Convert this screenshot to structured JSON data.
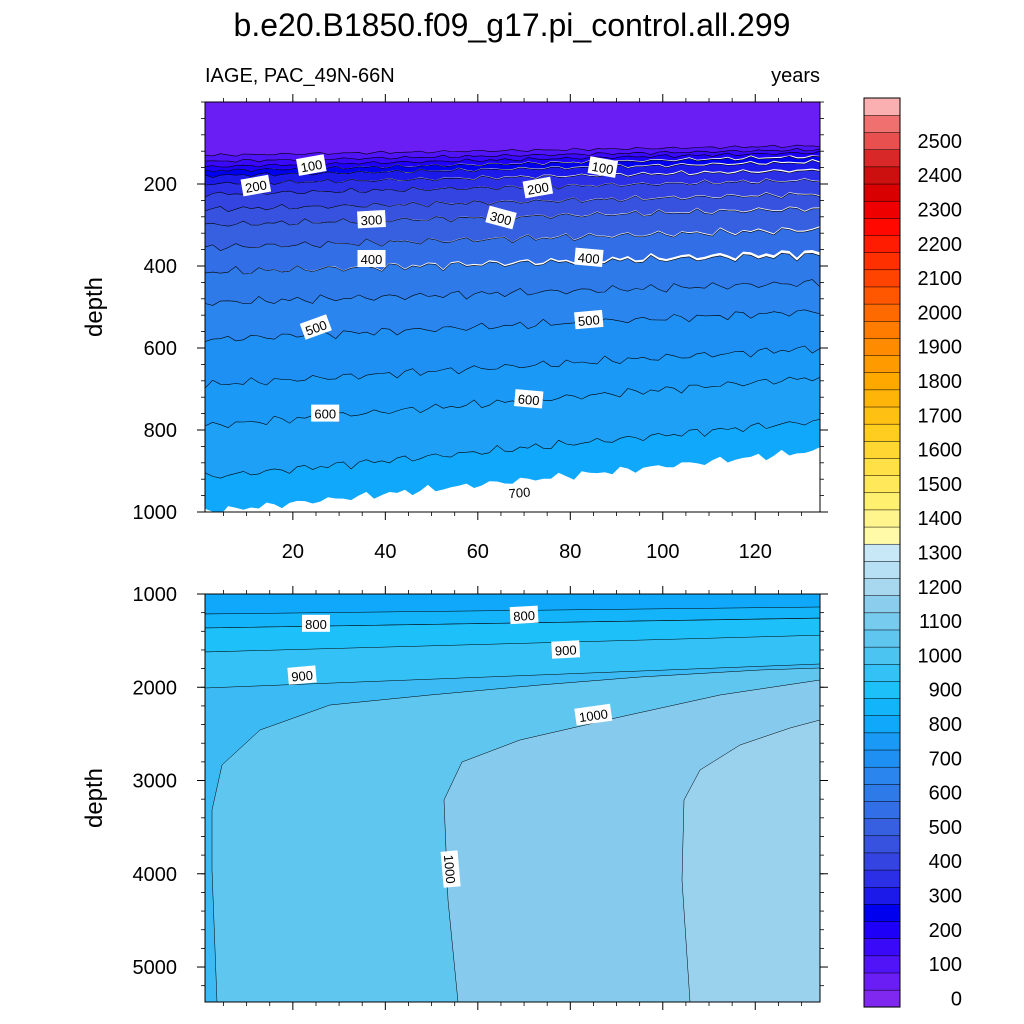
{
  "chart_data": {
    "type": "heatmap",
    "title": "b.e20.B1850.f09_g17.pi_control.all.299",
    "left_subtitle": "IAGE, PAC_49N-66N",
    "right_subtitle": "years",
    "x_ticks": [
      20,
      40,
      60,
      80,
      100,
      120
    ],
    "x_range": [
      1,
      134
    ],
    "colorbar": {
      "labels": [
        "0",
        "100",
        "200",
        "300",
        "400",
        "500",
        "600",
        "700",
        "800",
        "900",
        "1000",
        "1100",
        "1200",
        "1300",
        "1400",
        "1500",
        "1600",
        "1700",
        "1800",
        "1900",
        "2000",
        "2100",
        "2200",
        "2300",
        "2400",
        "2500"
      ],
      "levels_step": 50,
      "colors": [
        "#8028f0",
        "#6a1ef4",
        "#5014f6",
        "#3a0af8",
        "#1e00f8",
        "#0000ee",
        "#1b1ae8",
        "#2b30e6",
        "#3444e0",
        "#3652de",
        "#3660e0",
        "#326ee6",
        "#2e7ae8",
        "#2a86ee",
        "#1e90f4",
        "#1a9af6",
        "#10a8fa",
        "#14b4fa",
        "#1ec0fa",
        "#34c2f6",
        "#4cc4f2",
        "#5fc6f0",
        "#76cbee",
        "#8acdec",
        "#a8d8f0",
        "#b8e0f4",
        "#c8e8f8",
        "#fffaa8",
        "#fff58c",
        "#fff070",
        "#ffe85a",
        "#ffe046",
        "#ffd632",
        "#ffcc20",
        "#ffc014",
        "#ffb40a",
        "#ffa800",
        "#ff9a00",
        "#ff8c00",
        "#ff7c00",
        "#ff6a00",
        "#ff5600",
        "#ff4400",
        "#ff3000",
        "#ff1c00",
        "#ff0800",
        "#ee0000",
        "#d80000",
        "#cc1010",
        "#d82828",
        "#e85050",
        "#f07070",
        "#fab0b0"
      ]
    },
    "panels": [
      {
        "name": "upper",
        "ylabel": "depth",
        "y_range": [
          0,
          1000
        ],
        "y_ticks": [
          200,
          400,
          600,
          800,
          1000
        ],
        "layers": [
          {
            "d0": 0,
            "d1": 130,
            "s": 0,
            "color": "#6a1ef4"
          },
          {
            "d0": 130,
            "d1": 145,
            "s": 0.18,
            "color": "#5014f6"
          },
          {
            "d0": 145,
            "d1": 158,
            "s": 0.2,
            "color": "#3a0af8"
          },
          {
            "d0": 158,
            "d1": 168,
            "s": 0.22,
            "color": "#1e00f8"
          },
          {
            "d0": 168,
            "d1": 180,
            "s": 0.2,
            "color": "#0000ee"
          },
          {
            "d0": 180,
            "d1": 200,
            "s": 0.18,
            "color": "#1b1ae8"
          },
          {
            "d0": 200,
            "d1": 225,
            "s": 0.16,
            "color": "#2b30e6"
          },
          {
            "d0": 225,
            "d1": 262,
            "s": 0.15,
            "color": "#3444e0"
          },
          {
            "d0": 262,
            "d1": 300,
            "s": 0.14,
            "color": "#3652de"
          },
          {
            "d0": 300,
            "d1": 355,
            "s": 0.13,
            "color": "#3660e0"
          },
          {
            "d0": 355,
            "d1": 415,
            "s": 0.12,
            "color": "#326ee6"
          },
          {
            "d0": 415,
            "d1": 490,
            "s": 0.1,
            "color": "#2e7ae8"
          },
          {
            "d0": 490,
            "d1": 580,
            "s": 0.1,
            "color": "#2a86ee"
          },
          {
            "d0": 580,
            "d1": 690,
            "s": 0.12,
            "color": "#1e90f4"
          },
          {
            "d0": 690,
            "d1": 790,
            "s": 0.13,
            "color": "#1a9af6"
          },
          {
            "d0": 790,
            "d1": 915,
            "s": 0.15,
            "color": "#1ea0f6"
          },
          {
            "d0": 915,
            "d1": 1000,
            "s": 0.15,
            "color": "#10a8fa"
          }
        ],
        "labels": [
          {
            "text": "100",
            "x": 24,
            "depth": 155,
            "angle": -10
          },
          {
            "text": "200",
            "x": 12,
            "depth": 205,
            "angle": -10
          },
          {
            "text": "100",
            "x": 87,
            "depth": 160,
            "angle": 10
          },
          {
            "text": "200",
            "x": 73,
            "depth": 210,
            "angle": -10
          },
          {
            "text": "300",
            "x": 37,
            "depth": 287,
            "angle": -3
          },
          {
            "text": "300",
            "x": 65,
            "depth": 283,
            "angle": 15
          },
          {
            "text": "400",
            "x": 37,
            "depth": 383,
            "angle": 0
          },
          {
            "text": "400",
            "x": 84,
            "depth": 380,
            "angle": 5
          },
          {
            "text": "500",
            "x": 25,
            "depth": 550,
            "angle": -20
          },
          {
            "text": "500",
            "x": 84,
            "depth": 532,
            "angle": -5
          },
          {
            "text": "600",
            "x": 27,
            "depth": 760,
            "angle": 0
          },
          {
            "text": "600",
            "x": 71,
            "depth": 725,
            "angle": 5
          },
          {
            "text": "700",
            "x": 69,
            "depth": 952,
            "angle": -5
          }
        ]
      },
      {
        "name": "lower",
        "ylabel": "depth",
        "y_range": [
          1000,
          5375
        ],
        "y_ticks": [
          1000,
          2000,
          3000,
          4000,
          5000
        ],
        "labels": [
          {
            "text": "800",
            "x": 25,
            "depth": 1320,
            "angle": 0
          },
          {
            "text": "800",
            "x": 70,
            "depth": 1230,
            "angle": -3
          },
          {
            "text": "900",
            "x": 22,
            "depth": 1875,
            "angle": -5
          },
          {
            "text": "900",
            "x": 79,
            "depth": 1600,
            "angle": -3
          },
          {
            "text": "1000",
            "x": 85,
            "depth": 2300,
            "angle": -8
          },
          {
            "text": "1000",
            "x": 54,
            "depth": 3950,
            "angle": 85
          }
        ]
      }
    ]
  }
}
